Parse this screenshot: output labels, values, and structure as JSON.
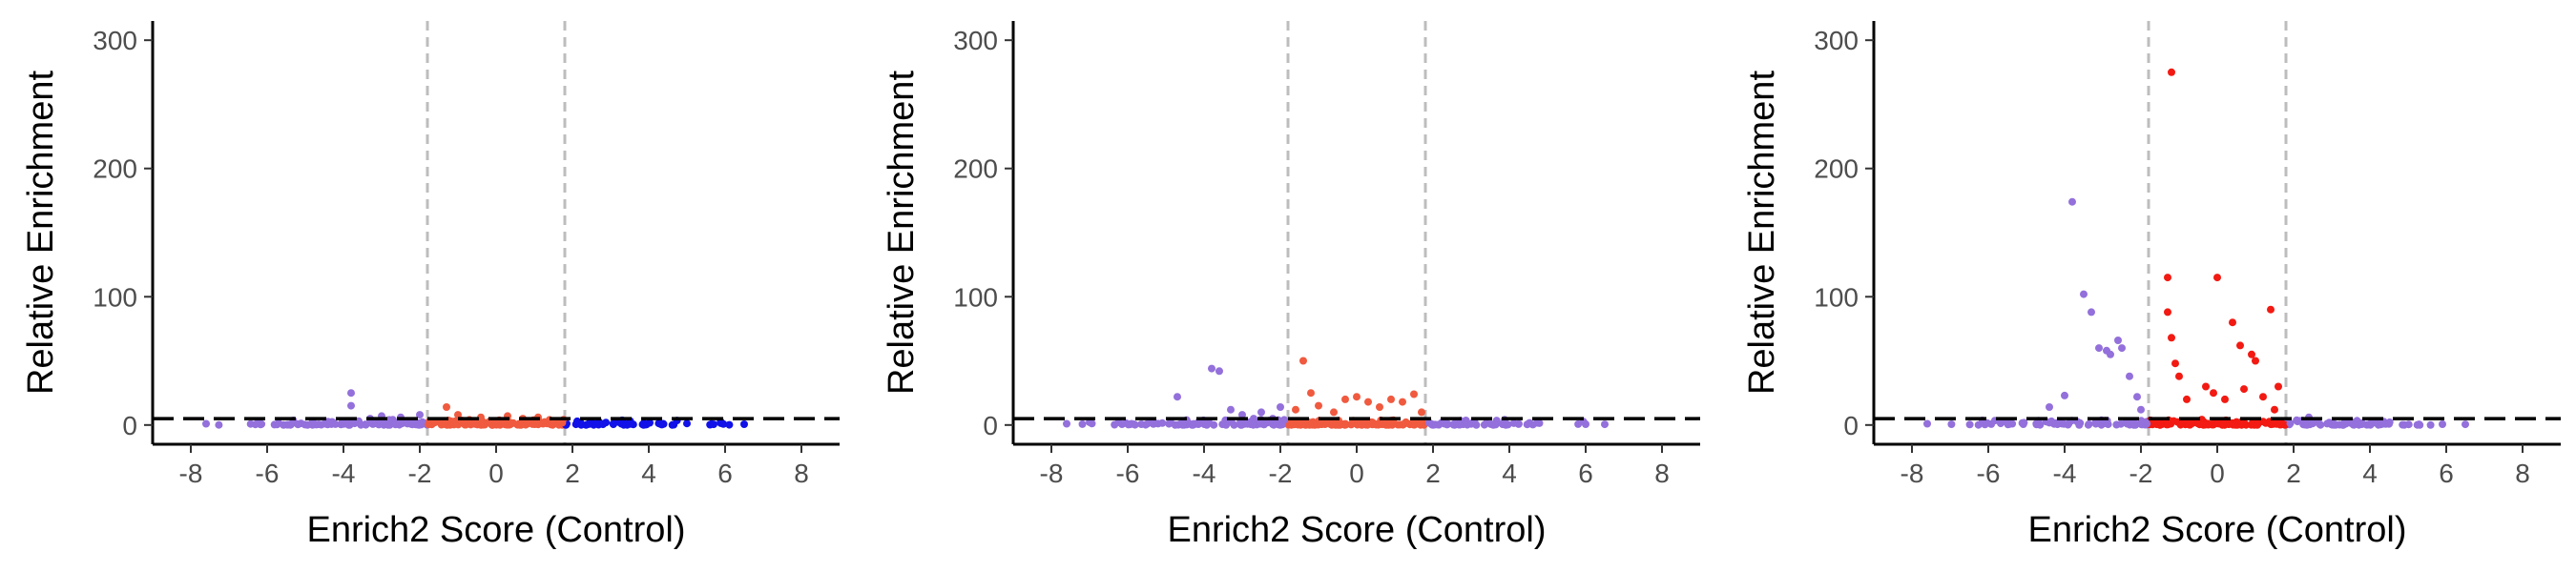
{
  "colors": {
    "low": "#9370DB",
    "mid": "#F05A3F",
    "high": "#1111E8",
    "mid_strong": "#F21A12",
    "threshold_h": "#000000",
    "threshold_v": "#BDBDBD"
  },
  "chart_data": [
    {
      "type": "scatter",
      "xlabel": "Enrich2 Score (Control)",
      "ylabel": "Relative Enrichment",
      "xlim": [
        -9,
        9
      ],
      "ylim": [
        -15,
        315
      ],
      "xticks": [
        -8,
        -6,
        -4,
        -2,
        0,
        2,
        4,
        6,
        8
      ],
      "yticks": [
        0,
        100,
        200,
        300
      ],
      "hline": 5,
      "vlines": [
        -1.8,
        1.8
      ],
      "x_range": [
        -7.7,
        6.6
      ],
      "series": [
        {
          "group": "low",
          "color_key": "low",
          "points": [
            [
              -7.6,
              1.0
            ],
            [
              -5.7,
              1.5
            ],
            [
              -4.3,
              2.5
            ],
            [
              -3.8,
              25.0
            ],
            [
              -3.8,
              15.0
            ],
            [
              -3.6,
              3.0
            ],
            [
              -3.3,
              5.0
            ],
            [
              -3.0,
              7.0
            ],
            [
              -2.8,
              4.0
            ],
            [
              -2.5,
              6.0
            ],
            [
              -2.2,
              3.0
            ],
            [
              -2.0,
              8.0
            ]
          ]
        },
        {
          "group": "mid",
          "color_key": "mid",
          "points": [
            [
              -1.6,
              2.0
            ],
            [
              -1.3,
              14.0
            ],
            [
              -1.0,
              8.0
            ],
            [
              -0.7,
              4.0
            ],
            [
              -0.4,
              6.0
            ],
            [
              0.0,
              3.0
            ],
            [
              0.3,
              7.0
            ],
            [
              0.7,
              5.0
            ],
            [
              1.1,
              6.0
            ],
            [
              1.4,
              4.0
            ],
            [
              1.7,
              3.0
            ]
          ]
        },
        {
          "group": "high",
          "color_key": "high",
          "points": [
            [
              2.2,
              1.0
            ],
            [
              2.8,
              0.5
            ],
            [
              3.5,
              1.0
            ],
            [
              4.3,
              0.8
            ],
            [
              5.0,
              1.2
            ],
            [
              5.7,
              0.5
            ],
            [
              6.5,
              0.6
            ]
          ]
        }
      ]
    },
    {
      "type": "scatter",
      "xlabel": "Enrich2 Score (Control)",
      "ylabel": "Relative Enrichment",
      "xlim": [
        -9,
        9
      ],
      "ylim": [
        -15,
        315
      ],
      "xticks": [
        -8,
        -6,
        -4,
        -2,
        0,
        2,
        4,
        6,
        8
      ],
      "yticks": [
        0,
        100,
        200,
        300
      ],
      "hline": 5,
      "vlines": [
        -1.8,
        1.8
      ],
      "x_range": [
        -7.7,
        6.6
      ],
      "series": [
        {
          "group": "low",
          "color_key": "low",
          "points": [
            [
              -7.6,
              1.0
            ],
            [
              -4.7,
              22.0
            ],
            [
              -3.8,
              44.0
            ],
            [
              -3.6,
              42.0
            ],
            [
              -3.3,
              12.0
            ],
            [
              -3.0,
              8.0
            ],
            [
              -2.7,
              5.0
            ],
            [
              -2.5,
              10.0
            ],
            [
              -2.2,
              5.0
            ],
            [
              -2.0,
              14.0
            ],
            [
              -1.9,
              4.0
            ],
            [
              2.3,
              1.0
            ],
            [
              3.0,
              0.8
            ],
            [
              4.5,
              1.0
            ],
            [
              6.0,
              0.6
            ],
            [
              6.5,
              0.5
            ]
          ]
        },
        {
          "group": "mid",
          "color_key": "mid",
          "points": [
            [
              -1.6,
              12.0
            ],
            [
              -1.4,
              50.0
            ],
            [
              -1.2,
              25.0
            ],
            [
              -1.0,
              15.0
            ],
            [
              -0.6,
              10.0
            ],
            [
              -0.3,
              20.0
            ],
            [
              0.0,
              22.0
            ],
            [
              0.3,
              18.0
            ],
            [
              0.6,
              14.0
            ],
            [
              0.9,
              20.0
            ],
            [
              1.2,
              18.0
            ],
            [
              1.5,
              24.0
            ],
            [
              1.7,
              10.0
            ]
          ]
        }
      ]
    },
    {
      "type": "scatter",
      "xlabel": "Enrich2 Score (Control)",
      "ylabel": "Relative Enrichment",
      "xlim": [
        -9,
        9
      ],
      "ylim": [
        -15,
        315
      ],
      "xticks": [
        -8,
        -6,
        -4,
        -2,
        0,
        2,
        4,
        6,
        8
      ],
      "yticks": [
        0,
        100,
        200,
        300
      ],
      "hline": 5,
      "vlines": [
        -1.8,
        1.8
      ],
      "x_range": [
        -7.7,
        6.6
      ],
      "series": [
        {
          "group": "low",
          "color_key": "low",
          "points": [
            [
              -7.6,
              1.0
            ],
            [
              -4.4,
              14.0
            ],
            [
              -4.0,
              23.0
            ],
            [
              -3.8,
              174.0
            ],
            [
              -3.5,
              102.0
            ],
            [
              -3.3,
              88.0
            ],
            [
              -3.1,
              60.0
            ],
            [
              -2.9,
              58.0
            ],
            [
              -2.8,
              55.0
            ],
            [
              -2.6,
              66.0
            ],
            [
              -2.5,
              60.0
            ],
            [
              -2.3,
              38.0
            ],
            [
              -2.1,
              22.0
            ],
            [
              -2.0,
              12.0
            ],
            [
              2.4,
              6.0
            ],
            [
              3.0,
              1.0
            ],
            [
              4.5,
              0.8
            ],
            [
              5.9,
              0.6
            ],
            [
              6.5,
              0.5
            ]
          ]
        },
        {
          "group": "mid",
          "color_key": "mid_strong",
          "points": [
            [
              -1.2,
              275.0
            ],
            [
              -1.3,
              115.0
            ],
            [
              -1.3,
              88.0
            ],
            [
              -1.2,
              68.0
            ],
            [
              -1.1,
              48.0
            ],
            [
              -1.0,
              38.0
            ],
            [
              -0.8,
              20.0
            ],
            [
              -0.3,
              30.0
            ],
            [
              -0.1,
              25.0
            ],
            [
              0.0,
              115.0
            ],
            [
              0.2,
              20.0
            ],
            [
              0.4,
              80.0
            ],
            [
              0.6,
              62.0
            ],
            [
              0.7,
              28.0
            ],
            [
              0.9,
              55.0
            ],
            [
              1.0,
              50.0
            ],
            [
              1.2,
              22.0
            ],
            [
              1.4,
              90.0
            ],
            [
              1.5,
              12.0
            ],
            [
              1.6,
              30.0
            ]
          ]
        }
      ]
    }
  ]
}
